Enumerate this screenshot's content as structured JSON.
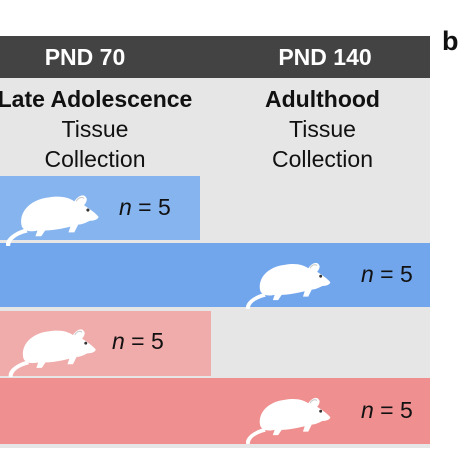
{
  "panel_label": "b",
  "columns": [
    {
      "header": "PND 70",
      "stage": "Late Adolescence",
      "line1": "Tissue",
      "line2": "Collection"
    },
    {
      "header": "PND 140",
      "stage": "Adulthood",
      "line1": "Tissue",
      "line2": "Collection"
    }
  ],
  "groups": [
    {
      "n_prefix": "n",
      "n_suffix": " = 5",
      "color": "#86b4ee",
      "icon": "rat-icon"
    },
    {
      "n_prefix": "n",
      "n_suffix": " = 5",
      "color": "#71a5ec",
      "icon": "rat-icon"
    },
    {
      "n_prefix": "n",
      "n_suffix": " = 5",
      "color": "#f0abab",
      "icon": "rat-icon"
    },
    {
      "n_prefix": "n",
      "n_suffix": " = 5",
      "color": "#ef8f8f",
      "icon": "rat-icon"
    }
  ],
  "colors": {
    "header_bg": "#434343",
    "panel_bg": "#e6e6e6"
  }
}
